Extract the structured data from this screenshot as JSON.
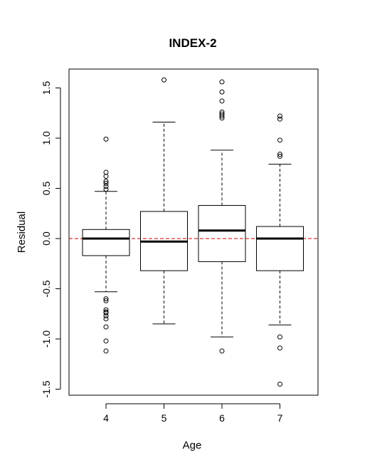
{
  "chart_data": {
    "type": "boxplot",
    "title": "INDEX-2",
    "xlabel": "Age",
    "ylabel": "Residual",
    "categories": [
      "4",
      "5",
      "6",
      "7"
    ],
    "ylim": [
      -1.5,
      1.65
    ],
    "yticks": [
      -1.5,
      -1.0,
      -0.5,
      0.0,
      0.5,
      1.0,
      1.5
    ],
    "ytick_labels": [
      "-1.5",
      "-1.0",
      "-0.5",
      "0.0",
      "0.5",
      "1.0",
      "1.5"
    ],
    "reference_line": {
      "y": 0.0,
      "color": "#cc0000",
      "style": "dashed"
    },
    "boxes": [
      {
        "category": "4",
        "whisker_low": -0.53,
        "q1": -0.17,
        "median": 0.0,
        "q3": 0.09,
        "whisker_high": 0.47,
        "outliers": [
          0.99,
          0.66,
          0.62,
          0.57,
          0.55,
          0.52,
          0.49,
          -0.6,
          -0.62,
          -0.71,
          -0.73,
          -0.74,
          -0.77,
          -0.8,
          -0.88,
          -1.02,
          -1.12
        ]
      },
      {
        "category": "5",
        "whisker_low": -0.85,
        "q1": -0.32,
        "median": -0.03,
        "q3": 0.27,
        "whisker_high": 1.16,
        "outliers": [
          1.58
        ]
      },
      {
        "category": "6",
        "whisker_low": -0.98,
        "q1": -0.23,
        "median": 0.08,
        "q3": 0.33,
        "whisker_high": 0.88,
        "outliers": [
          1.56,
          1.46,
          1.37,
          1.26,
          1.24,
          1.22,
          1.2,
          -1.12
        ]
      },
      {
        "category": "7",
        "whisker_low": -0.86,
        "q1": -0.32,
        "median": 0.0,
        "q3": 0.12,
        "whisker_high": 0.74,
        "outliers": [
          1.22,
          1.19,
          0.98,
          0.84,
          0.82,
          -0.98,
          -1.09,
          -1.45
        ]
      }
    ],
    "grid": false,
    "legend": "none"
  }
}
